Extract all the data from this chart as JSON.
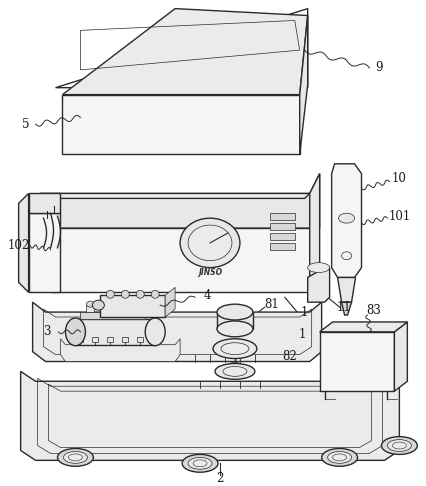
{
  "bg_color": "#ffffff",
  "line_color": "#2a2a2a",
  "label_color": "#1a1a1a",
  "fig_width": 4.27,
  "fig_height": 4.86,
  "dpi": 100,
  "lw_main": 1.0,
  "lw_thin": 0.5,
  "fill_light": "#f5f5f5",
  "fill_mid": "#e8e8e8",
  "fill_dark": "#d8d8d8",
  "fill_top": "#ebebeb"
}
